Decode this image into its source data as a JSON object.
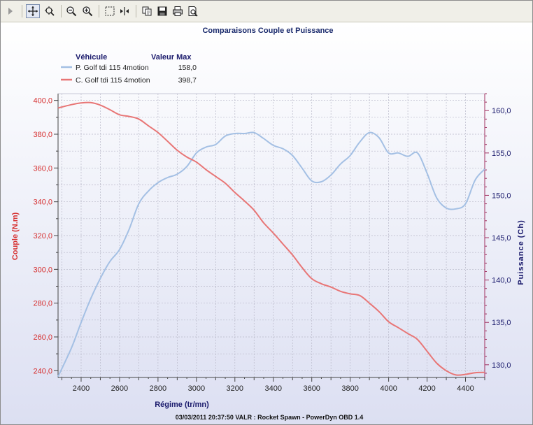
{
  "toolbar": {
    "items": [
      {
        "name": "play-icon"
      },
      {
        "name": "move-icon"
      },
      {
        "name": "zoom-area-icon"
      },
      {
        "name": "zoom-out-icon"
      },
      {
        "name": "zoom-in-icon"
      },
      {
        "name": "select-icon"
      },
      {
        "name": "cursor-icon"
      },
      {
        "name": "copy-icon"
      },
      {
        "name": "save-icon"
      },
      {
        "name": "print-icon"
      },
      {
        "name": "print-preview-icon"
      }
    ]
  },
  "chart_data": {
    "type": "line",
    "title": "Comparaisons Couple et Puissance",
    "xlabel": "Régime (tr/mn)",
    "ylabel_left": "Couple (N.m)",
    "ylabel_right": "Puissance (Ch)",
    "footer": "03/03/2011 20:37:50 VALR : Rocket Spawn - PowerDyn OBD 1.4",
    "xlim": [
      2280,
      4500
    ],
    "ylim_left": [
      236,
      404
    ],
    "ylim_right": [
      128.5,
      162
    ],
    "xticks": [
      2400,
      2600,
      2800,
      3000,
      3200,
      3400,
      3600,
      3800,
      4000,
      4200,
      4400
    ],
    "xtick_labels": [
      "2400",
      "2600",
      "2800",
      "3000",
      "3200",
      "3400",
      "3600",
      "3800",
      "4000",
      "4200",
      "4400"
    ],
    "yticks_left": [
      240,
      260,
      280,
      300,
      320,
      340,
      360,
      380,
      400
    ],
    "ytick_labels_left": [
      "240,0",
      "260,0",
      "280,0",
      "300,0",
      "320,0",
      "340,0",
      "360,0",
      "380,0",
      "400,0"
    ],
    "yticks_right": [
      130,
      135,
      140,
      145,
      150,
      155,
      160
    ],
    "ytick_labels_right": [
      "130,0",
      "135,0",
      "140,0",
      "145,0",
      "150,0",
      "155,0",
      "160,0"
    ],
    "grid": true,
    "legend": {
      "header_name": "Véhicule",
      "header_value": "Valeur Max",
      "position": "top-left"
    },
    "series": [
      {
        "name": "P. Golf tdi 115 4motion",
        "max_label": "158,0",
        "axis": "right",
        "color": "#a4c0e4",
        "x": [
          2280,
          2350,
          2400,
          2450,
          2500,
          2550,
          2600,
          2650,
          2700,
          2750,
          2800,
          2850,
          2900,
          2950,
          3000,
          3050,
          3100,
          3150,
          3200,
          3250,
          3300,
          3350,
          3400,
          3450,
          3500,
          3550,
          3600,
          3650,
          3700,
          3750,
          3800,
          3850,
          3900,
          3950,
          4000,
          4050,
          4100,
          4150,
          4200,
          4250,
          4300,
          4350,
          4400,
          4450,
          4500
        ],
        "values": [
          128.6,
          132.0,
          135.0,
          137.8,
          140.2,
          142.2,
          143.6,
          146.0,
          149.0,
          150.5,
          151.5,
          152.1,
          152.5,
          153.4,
          155.0,
          155.7,
          156.0,
          157.0,
          157.3,
          157.3,
          157.4,
          156.7,
          155.9,
          155.5,
          154.7,
          153.2,
          151.7,
          151.6,
          152.4,
          153.7,
          154.7,
          156.3,
          157.4,
          156.8,
          155.0,
          155.0,
          154.6,
          155.0,
          152.6,
          149.7,
          148.5,
          148.4,
          149.0,
          151.8,
          153.1
        ]
      },
      {
        "name": "C. Golf tdi 115 4motion",
        "max_label": "398,7",
        "axis": "left",
        "color": "#e87676",
        "x": [
          2280,
          2350,
          2400,
          2450,
          2500,
          2550,
          2600,
          2650,
          2700,
          2750,
          2800,
          2850,
          2900,
          2950,
          3000,
          3050,
          3100,
          3150,
          3200,
          3250,
          3300,
          3350,
          3400,
          3450,
          3500,
          3550,
          3600,
          3650,
          3700,
          3750,
          3800,
          3850,
          3900,
          3950,
          4000,
          4050,
          4100,
          4150,
          4200,
          4250,
          4300,
          4350,
          4400,
          4450,
          4500
        ],
        "values": [
          395.5,
          397.5,
          398.5,
          398.7,
          397.2,
          394.5,
          391.5,
          390.5,
          389.0,
          385.0,
          381.0,
          375.8,
          370.5,
          366.5,
          363.5,
          359.0,
          355.0,
          351.0,
          345.5,
          340.5,
          335.0,
          327.5,
          321.5,
          315.0,
          308.5,
          301.0,
          294.5,
          291.5,
          289.5,
          287.0,
          285.5,
          284.5,
          280.0,
          275.0,
          269.0,
          265.5,
          262.0,
          258.5,
          251.5,
          244.5,
          240.0,
          237.5,
          237.8,
          238.8,
          239.0
        ]
      }
    ]
  }
}
